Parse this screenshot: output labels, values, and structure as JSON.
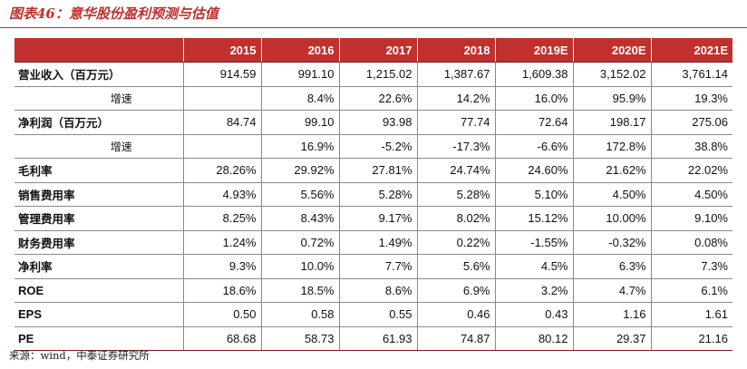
{
  "title": "图表46：意华股份盈利预测与估值",
  "columns": [
    "2015",
    "2016",
    "2017",
    "2018",
    "2019E",
    "2020E",
    "2021E"
  ],
  "rows": [
    {
      "label": "营业收入（百万元）",
      "values": [
        "914.59",
        "991.10",
        "1,215.02",
        "1,387.67",
        "1,609.38",
        "3,152.02",
        "3,761.14"
      ]
    },
    {
      "label": "增速",
      "sub": true,
      "values": [
        "",
        "8.4%",
        "22.6%",
        "14.2%",
        "16.0%",
        "95.9%",
        "19.3%"
      ]
    },
    {
      "label": "净利润（百万元）",
      "values": [
        "84.74",
        "99.10",
        "93.98",
        "77.74",
        "72.64",
        "198.17",
        "275.06"
      ]
    },
    {
      "label": "增速",
      "sub": true,
      "values": [
        "",
        "16.9%",
        "-5.2%",
        "-17.3%",
        "-6.6%",
        "172.8%",
        "38.8%"
      ]
    },
    {
      "label": "毛利率",
      "values": [
        "28.26%",
        "29.92%",
        "27.81%",
        "24.74%",
        "24.60%",
        "21.62%",
        "22.02%"
      ]
    },
    {
      "label": "销售费用率",
      "values": [
        "4.93%",
        "5.56%",
        "5.28%",
        "5.28%",
        "5.10%",
        "4.50%",
        "4.50%"
      ]
    },
    {
      "label": "管理费用率",
      "values": [
        "8.25%",
        "8.43%",
        "9.17%",
        "8.02%",
        "15.12%",
        "10.00%",
        "9.10%"
      ]
    },
    {
      "label": "财务费用率",
      "values": [
        "1.24%",
        "0.72%",
        "1.49%",
        "0.22%",
        "-1.55%",
        "-0.32%",
        "0.08%"
      ]
    },
    {
      "label": "净利率",
      "values": [
        "9.3%",
        "10.0%",
        "7.7%",
        "5.6%",
        "4.5%",
        "6.3%",
        "7.3%"
      ]
    },
    {
      "label": "ROE",
      "latin": true,
      "values": [
        "18.6%",
        "18.5%",
        "8.6%",
        "6.9%",
        "3.2%",
        "4.7%",
        "6.1%"
      ]
    },
    {
      "label": "EPS",
      "latin": true,
      "values": [
        "0.50",
        "0.58",
        "0.55",
        "0.46",
        "0.43",
        "1.16",
        "1.61"
      ]
    },
    {
      "label": "PE",
      "latin": true,
      "values": [
        "68.68",
        "58.73",
        "61.93",
        "74.87",
        "80.12",
        "29.37",
        "21.16"
      ]
    }
  ],
  "source": "来源：wind，中泰证券研究所",
  "accent_color": "#c0302e"
}
